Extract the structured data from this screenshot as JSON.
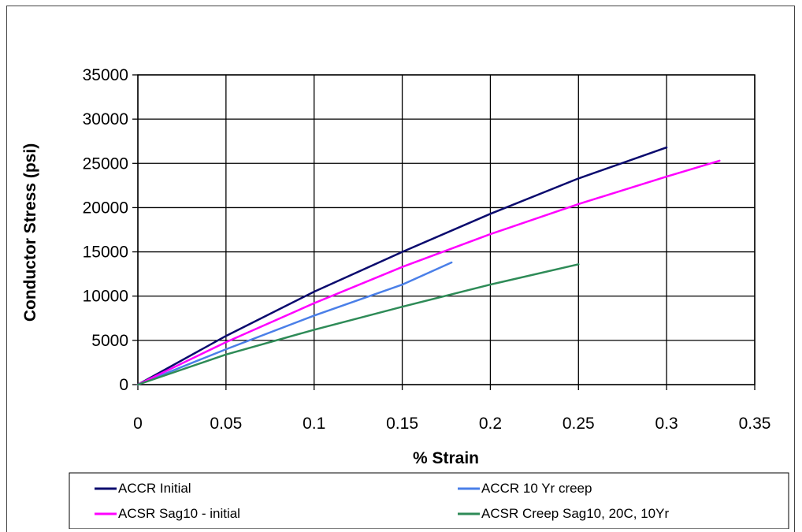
{
  "chart_data": {
    "type": "line",
    "xlabel": "% Strain",
    "ylabel": "Conductor Stress (psi)",
    "xlim": [
      0,
      0.35
    ],
    "ylim": [
      0,
      35000
    ],
    "x_ticks": [
      "0",
      "0.05",
      "0.1",
      "0.15",
      "0.2",
      "0.25",
      "0.3",
      "0.35"
    ],
    "y_ticks": [
      "0",
      "5000",
      "10000",
      "15000",
      "20000",
      "25000",
      "30000",
      "35000"
    ],
    "grid": true,
    "legend_position": "bottom",
    "series": [
      {
        "name": "ACCR Initial",
        "color": "#0a0a6e",
        "points": [
          [
            0,
            0
          ],
          [
            0.05,
            5500
          ],
          [
            0.1,
            10500
          ],
          [
            0.15,
            15000
          ],
          [
            0.2,
            19300
          ],
          [
            0.25,
            23300
          ],
          [
            0.3,
            26800
          ]
        ]
      },
      {
        "name": "ACCR 10 Yr creep",
        "color": "#4a7fe8",
        "points": [
          [
            0,
            0
          ],
          [
            0.05,
            4000
          ],
          [
            0.1,
            7800
          ],
          [
            0.15,
            11300
          ],
          [
            0.178,
            13800
          ]
        ]
      },
      {
        "name": "ACSR Sag10 - initial",
        "color": "#ff00ff",
        "points": [
          [
            0,
            0
          ],
          [
            0.05,
            4800
          ],
          [
            0.1,
            9200
          ],
          [
            0.15,
            13300
          ],
          [
            0.2,
            17000
          ],
          [
            0.25,
            20400
          ],
          [
            0.3,
            23500
          ],
          [
            0.33,
            25300
          ]
        ]
      },
      {
        "name": "ACSR Creep Sag10, 20C, 10Yr",
        "color": "#2e8b57",
        "points": [
          [
            0,
            0
          ],
          [
            0.05,
            3400
          ],
          [
            0.1,
            6200
          ],
          [
            0.15,
            8800
          ],
          [
            0.2,
            11300
          ],
          [
            0.25,
            13600
          ]
        ]
      }
    ]
  }
}
